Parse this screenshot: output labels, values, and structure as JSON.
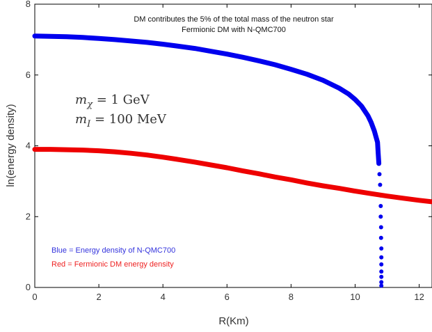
{
  "chart_data": {
    "type": "scatter",
    "title": "DM contributes the 5% of the total mass of the neutron star",
    "subtitle": "Fermionic DM with N-QMC700",
    "xlabel": "R(Km)",
    "ylabel": "ln(energy density)",
    "xlim": [
      0,
      12.4
    ],
    "ylim": [
      0,
      8
    ],
    "xticks": [
      "0",
      "2",
      "4",
      "6",
      "8",
      "10",
      "12"
    ],
    "yticks": [
      "0",
      "2",
      "4",
      "6",
      "8"
    ],
    "grid": false,
    "legend_position": "bottom-left",
    "annotations": {
      "line1": {
        "var": "m",
        "sub": "χ",
        "rest": " = 1  GeV"
      },
      "line2": {
        "var": "m",
        "sub": "I",
        "rest": " = 100  MeV"
      }
    },
    "legend": [
      {
        "text": "Blue = Energy density of  N-QMC700",
        "color": "#3333dd"
      },
      {
        "text": "Red = Fermionic DM energy density",
        "color": "#ee2222"
      }
    ],
    "series": [
      {
        "color": "#0000ee",
        "x": [
          0,
          0.5,
          1,
          1.5,
          2,
          2.5,
          3,
          3.5,
          4,
          4.5,
          5,
          5.5,
          6,
          6.5,
          7,
          7.5,
          8,
          8.5,
          9,
          9.5,
          9.8,
          10,
          10.2,
          10.4,
          10.5,
          10.6,
          10.65,
          10.7,
          10.72,
          10.74,
          10.76,
          10.78,
          10.79,
          10.8,
          10.8,
          10.81,
          10.81,
          10.82,
          10.82,
          10.82,
          10.82,
          10.82,
          10.82,
          10.82
        ],
        "y": [
          7.1,
          7.09,
          7.08,
          7.06,
          7.03,
          7.0,
          6.96,
          6.92,
          6.87,
          6.81,
          6.75,
          6.67,
          6.59,
          6.5,
          6.4,
          6.29,
          6.16,
          6.02,
          5.85,
          5.63,
          5.46,
          5.31,
          5.12,
          4.85,
          4.66,
          4.42,
          4.26,
          4.1,
          3.8,
          3.5,
          3.2,
          2.9,
          2.6,
          2.3,
          2.0,
          1.7,
          1.4,
          1.1,
          0.85,
          0.65,
          0.45,
          0.3,
          0.15,
          0.05
        ]
      },
      {
        "color": "#ee0000",
        "x": [
          0,
          0.5,
          1,
          1.5,
          2,
          2.5,
          3,
          3.5,
          4,
          4.5,
          5,
          5.5,
          6,
          6.5,
          7,
          7.5,
          8,
          8.5,
          9,
          9.5,
          10,
          10.5,
          11,
          11.5,
          12,
          12.4
        ],
        "y": [
          3.9,
          3.9,
          3.89,
          3.88,
          3.86,
          3.83,
          3.79,
          3.74,
          3.68,
          3.61,
          3.54,
          3.46,
          3.38,
          3.29,
          3.21,
          3.12,
          3.04,
          2.95,
          2.87,
          2.8,
          2.72,
          2.65,
          2.58,
          2.52,
          2.46,
          2.42
        ]
      }
    ]
  }
}
